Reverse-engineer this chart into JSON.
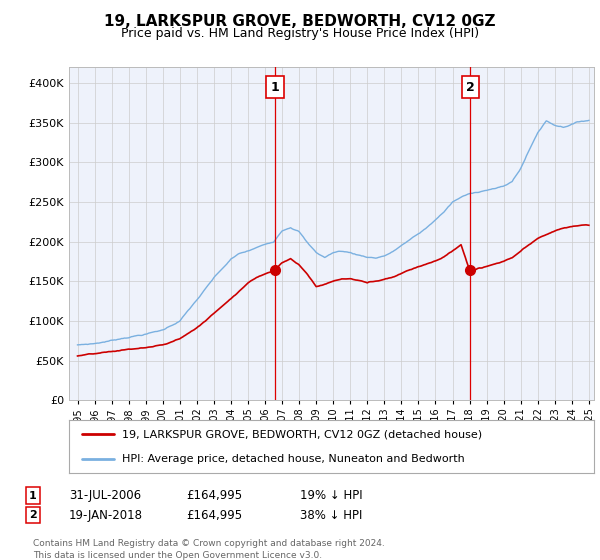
{
  "title": "19, LARKSPUR GROVE, BEDWORTH, CV12 0GZ",
  "subtitle": "Price paid vs. HM Land Registry's House Price Index (HPI)",
  "legend_property": "19, LARKSPUR GROVE, BEDWORTH, CV12 0GZ (detached house)",
  "legend_hpi": "HPI: Average price, detached house, Nuneaton and Bedworth",
  "footer": "Contains HM Land Registry data © Crown copyright and database right 2024.\nThis data is licensed under the Open Government Licence v3.0.",
  "sale1_date": "31-JUL-2006",
  "sale1_price": "£164,995",
  "sale1_hpi": "19% ↓ HPI",
  "sale2_date": "19-JAN-2018",
  "sale2_price": "£164,995",
  "sale2_hpi": "38% ↓ HPI",
  "plot_bg": "#eef2fb",
  "hpi_color": "#7ab0e0",
  "property_color": "#cc0000",
  "vline_color": "#dd0000",
  "grid_color": "#cccccc",
  "ylim_max": 420000,
  "sale1_year": 2006.58,
  "sale2_year": 2018.05,
  "sale1_value": 164995,
  "sale2_value": 164995,
  "hpi_keypoints": [
    [
      1995.0,
      70000
    ],
    [
      1996.0,
      72000
    ],
    [
      1997.0,
      76000
    ],
    [
      1998.0,
      81000
    ],
    [
      1999.0,
      85000
    ],
    [
      2000.0,
      90000
    ],
    [
      2001.0,
      102000
    ],
    [
      2002.0,
      128000
    ],
    [
      2003.0,
      155000
    ],
    [
      2004.0,
      178000
    ],
    [
      2004.5,
      185000
    ],
    [
      2005.0,
      188000
    ],
    [
      2005.5,
      192000
    ],
    [
      2006.0,
      196000
    ],
    [
      2006.5,
      200000
    ],
    [
      2007.0,
      215000
    ],
    [
      2007.5,
      220000
    ],
    [
      2008.0,
      215000
    ],
    [
      2008.5,
      200000
    ],
    [
      2009.0,
      188000
    ],
    [
      2009.5,
      182000
    ],
    [
      2010.0,
      188000
    ],
    [
      2010.5,
      190000
    ],
    [
      2011.0,
      188000
    ],
    [
      2011.5,
      185000
    ],
    [
      2012.0,
      183000
    ],
    [
      2012.5,
      182000
    ],
    [
      2013.0,
      185000
    ],
    [
      2013.5,
      190000
    ],
    [
      2014.0,
      198000
    ],
    [
      2014.5,
      205000
    ],
    [
      2015.0,
      212000
    ],
    [
      2015.5,
      220000
    ],
    [
      2016.0,
      230000
    ],
    [
      2016.5,
      240000
    ],
    [
      2017.0,
      252000
    ],
    [
      2017.5,
      258000
    ],
    [
      2018.0,
      262000
    ],
    [
      2018.5,
      265000
    ],
    [
      2019.0,
      268000
    ],
    [
      2019.5,
      270000
    ],
    [
      2020.0,
      272000
    ],
    [
      2020.5,
      278000
    ],
    [
      2021.0,
      295000
    ],
    [
      2021.5,
      318000
    ],
    [
      2022.0,
      340000
    ],
    [
      2022.5,
      355000
    ],
    [
      2023.0,
      350000
    ],
    [
      2023.5,
      348000
    ],
    [
      2024.0,
      352000
    ],
    [
      2024.5,
      355000
    ],
    [
      2025.0,
      357000
    ]
  ],
  "prop_keypoints": [
    [
      1995.0,
      56000
    ],
    [
      1996.0,
      58000
    ],
    [
      1997.0,
      60000
    ],
    [
      1998.0,
      63000
    ],
    [
      1999.0,
      65000
    ],
    [
      2000.0,
      68000
    ],
    [
      2001.0,
      76000
    ],
    [
      2002.0,
      90000
    ],
    [
      2003.0,
      108000
    ],
    [
      2004.0,
      128000
    ],
    [
      2004.5,
      138000
    ],
    [
      2005.0,
      148000
    ],
    [
      2005.5,
      155000
    ],
    [
      2006.0,
      160000
    ],
    [
      2006.58,
      164995
    ],
    [
      2007.0,
      175000
    ],
    [
      2007.5,
      180000
    ],
    [
      2008.0,
      172000
    ],
    [
      2008.5,
      160000
    ],
    [
      2009.0,
      145000
    ],
    [
      2009.5,
      148000
    ],
    [
      2010.0,
      152000
    ],
    [
      2010.5,
      155000
    ],
    [
      2011.0,
      155000
    ],
    [
      2011.5,
      153000
    ],
    [
      2012.0,
      150000
    ],
    [
      2012.5,
      152000
    ],
    [
      2013.0,
      155000
    ],
    [
      2013.5,
      158000
    ],
    [
      2014.0,
      163000
    ],
    [
      2014.5,
      168000
    ],
    [
      2015.0,
      172000
    ],
    [
      2015.5,
      176000
    ],
    [
      2016.0,
      180000
    ],
    [
      2016.5,
      185000
    ],
    [
      2017.0,
      192000
    ],
    [
      2017.5,
      200000
    ],
    [
      2018.05,
      164995
    ],
    [
      2018.5,
      170000
    ],
    [
      2019.0,
      172000
    ],
    [
      2019.5,
      175000
    ],
    [
      2020.0,
      178000
    ],
    [
      2020.5,
      182000
    ],
    [
      2021.0,
      190000
    ],
    [
      2021.5,
      198000
    ],
    [
      2022.0,
      205000
    ],
    [
      2022.5,
      210000
    ],
    [
      2023.0,
      215000
    ],
    [
      2023.5,
      218000
    ],
    [
      2024.0,
      220000
    ],
    [
      2024.5,
      222000
    ],
    [
      2025.0,
      222000
    ]
  ]
}
